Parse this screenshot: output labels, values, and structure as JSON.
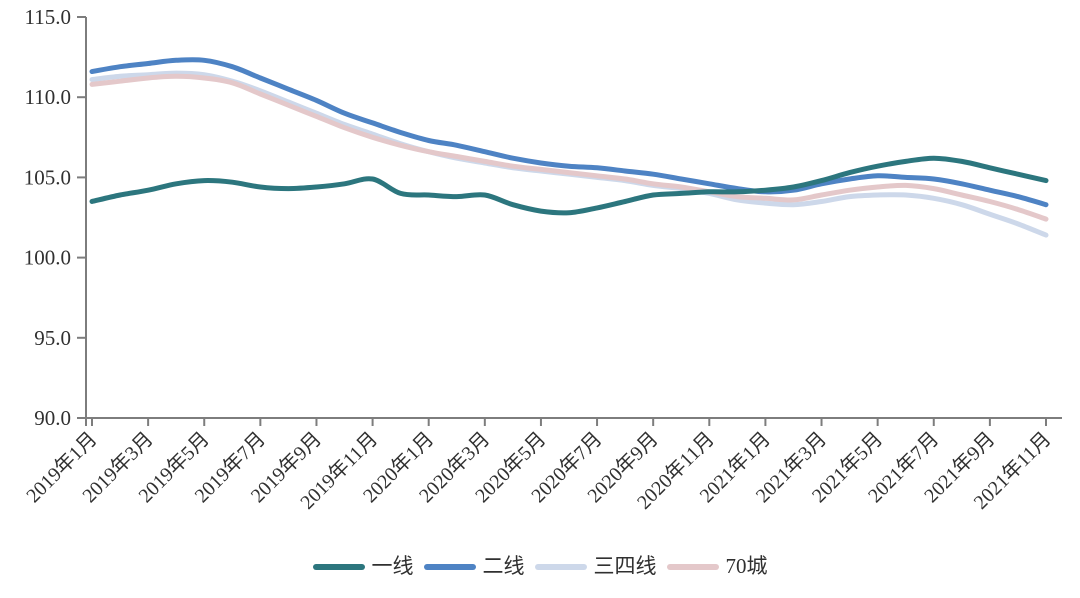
{
  "page": {
    "background": "#ffffff"
  },
  "chart_data": {
    "type": "line",
    "title": "",
    "xlabel": "",
    "ylabel": "",
    "grid": false,
    "legend_position": "bottom",
    "axis_color": "#7d7d7d",
    "text_color": "#303030",
    "ylim": [
      90,
      115
    ],
    "ytick_values": [
      90,
      95,
      100,
      105,
      110,
      115
    ],
    "ytick_labels": [
      "90.0",
      "95.0",
      "100.0",
      "105.0",
      "110.0",
      "115.0"
    ],
    "x_tick_every": 2,
    "categories": [
      "2019年1月",
      "2019年2月",
      "2019年3月",
      "2019年4月",
      "2019年5月",
      "2019年6月",
      "2019年7月",
      "2019年8月",
      "2019年9月",
      "2019年10月",
      "2019年11月",
      "2019年12月",
      "2020年1月",
      "2020年2月",
      "2020年3月",
      "2020年4月",
      "2020年5月",
      "2020年6月",
      "2020年7月",
      "2020年8月",
      "2020年9月",
      "2020年10月",
      "2020年11月",
      "2020年12月",
      "2021年1月",
      "2021年2月",
      "2021年3月",
      "2021年4月",
      "2021年5月",
      "2021年6月",
      "2021年7月",
      "2021年8月",
      "2021年9月",
      "2021年10月",
      "2021年11月"
    ],
    "series": [
      {
        "name": "一线",
        "color": "#2c767e",
        "values": [
          103.5,
          103.9,
          104.2,
          104.6,
          104.8,
          104.7,
          104.4,
          104.3,
          104.4,
          104.6,
          104.9,
          104.0,
          103.9,
          103.8,
          103.9,
          103.3,
          102.9,
          102.8,
          103.1,
          103.5,
          103.9,
          104.0,
          104.1,
          104.1,
          104.2,
          104.4,
          104.8,
          105.3,
          105.7,
          106.0,
          106.2,
          106.0,
          105.6,
          105.2,
          104.8
        ]
      },
      {
        "name": "二线",
        "color": "#4e83c4",
        "values": [
          111.6,
          111.9,
          112.1,
          112.3,
          112.3,
          111.9,
          111.2,
          110.5,
          109.8,
          109.0,
          108.4,
          107.8,
          107.3,
          107.0,
          106.6,
          106.2,
          105.9,
          105.7,
          105.6,
          105.4,
          105.2,
          104.9,
          104.6,
          104.3,
          104.1,
          104.2,
          104.6,
          104.9,
          105.1,
          105.0,
          104.9,
          104.6,
          104.2,
          103.8,
          103.3
        ]
      },
      {
        "name": "三四线",
        "color": "#cdd8ea",
        "values": [
          111.1,
          111.3,
          111.4,
          111.5,
          111.4,
          111.0,
          110.4,
          109.7,
          109.0,
          108.3,
          107.7,
          107.1,
          106.6,
          106.2,
          105.9,
          105.6,
          105.4,
          105.2,
          105.0,
          104.8,
          104.5,
          104.3,
          104.0,
          103.6,
          103.4,
          103.3,
          103.5,
          103.8,
          103.9,
          103.9,
          103.7,
          103.3,
          102.7,
          102.1,
          101.4
        ]
      },
      {
        "name": "70城",
        "color": "#e4c8ca",
        "values": [
          110.8,
          111.0,
          111.2,
          111.3,
          111.2,
          110.9,
          110.2,
          109.5,
          108.8,
          108.1,
          107.5,
          107.0,
          106.6,
          106.3,
          106.0,
          105.7,
          105.5,
          105.3,
          105.1,
          104.9,
          104.6,
          104.4,
          104.1,
          103.8,
          103.7,
          103.6,
          103.9,
          104.2,
          104.4,
          104.5,
          104.3,
          103.9,
          103.5,
          103.0,
          102.4
        ]
      }
    ],
    "draw_order": [
      2,
      3,
      1,
      0
    ],
    "line_width": 5
  }
}
